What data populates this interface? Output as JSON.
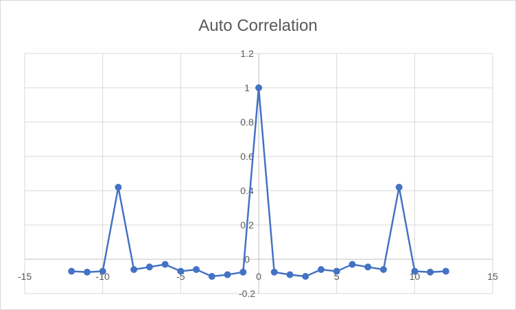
{
  "chart_data": {
    "type": "scatter",
    "title": "Auto Correlation",
    "xlabel": "",
    "ylabel": "",
    "xlim": [
      -15,
      15
    ],
    "ylim": [
      -0.2,
      1.2
    ],
    "x_ticks": [
      -15,
      -10,
      -5,
      0,
      5,
      10,
      15
    ],
    "y_ticks": [
      -0.2,
      0,
      0.2,
      0.4,
      0.6,
      0.8,
      1,
      1.2
    ],
    "x_tick_labels": [
      "-15",
      "-10",
      "-5",
      "0",
      "5",
      "10",
      "15"
    ],
    "y_tick_labels": [
      "-0.2",
      "0",
      "0.2",
      "0.4",
      "0.6",
      "0.8",
      "1",
      "1.2"
    ],
    "grid": true,
    "legend": "none",
    "line_color": "#4472C4",
    "series": [
      {
        "x": [
          -12,
          -11,
          -10,
          -9,
          -8,
          -7,
          -6,
          -5,
          -4,
          -3,
          -2,
          -1,
          0,
          1,
          2,
          3,
          4,
          5,
          6,
          7,
          8,
          9,
          10,
          11,
          12
        ],
        "y": [
          -0.07,
          -0.075,
          -0.07,
          0.42,
          -0.06,
          -0.045,
          -0.03,
          -0.07,
          -0.06,
          -0.1,
          -0.09,
          -0.075,
          1.0,
          -0.075,
          -0.09,
          -0.1,
          -0.06,
          -0.07,
          -0.03,
          -0.045,
          -0.06,
          0.42,
          -0.07,
          -0.075,
          -0.07
        ]
      }
    ]
  }
}
